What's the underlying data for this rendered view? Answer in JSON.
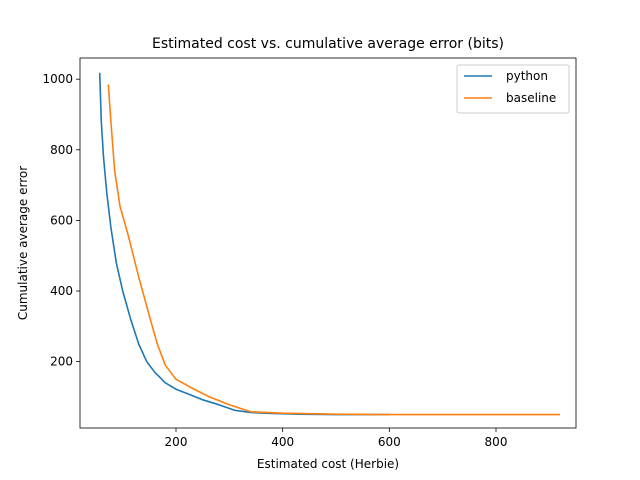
{
  "chart_data": {
    "type": "line",
    "title": "Estimated cost vs. cumulative average error (bits)",
    "xlabel": "Estimated cost (Herbie)",
    "ylabel": "Cumulative average error",
    "xlim": [
      20,
      950
    ],
    "ylim": [
      12,
      1060
    ],
    "xticks": [
      200,
      400,
      600,
      800
    ],
    "yticks": [
      200,
      400,
      600,
      800,
      1000
    ],
    "grid": false,
    "legend_position": "top-right",
    "series": [
      {
        "name": "python",
        "color": "#1f77b4",
        "x": [
          57,
          60,
          64,
          70,
          78,
          88,
          100,
          115,
          130,
          145,
          160,
          180,
          200,
          220,
          250,
          280,
          310,
          340,
          380,
          430,
          500,
          600
        ],
        "y": [
          1018,
          880,
          780,
          680,
          580,
          480,
          400,
          320,
          250,
          200,
          170,
          140,
          122,
          110,
          92,
          78,
          62,
          56,
          53,
          51,
          50,
          50
        ]
      },
      {
        "name": "baseline",
        "color": "#ff7f0e",
        "x": [
          73,
          78,
          85,
          95,
          110,
          130,
          150,
          165,
          180,
          200,
          230,
          260,
          300,
          340,
          400,
          500,
          600,
          700,
          800,
          920
        ],
        "y": [
          985,
          880,
          740,
          640,
          560,
          440,
          330,
          250,
          190,
          150,
          125,
          102,
          78,
          58,
          54,
          51,
          50,
          50,
          50,
          50
        ]
      }
    ]
  }
}
